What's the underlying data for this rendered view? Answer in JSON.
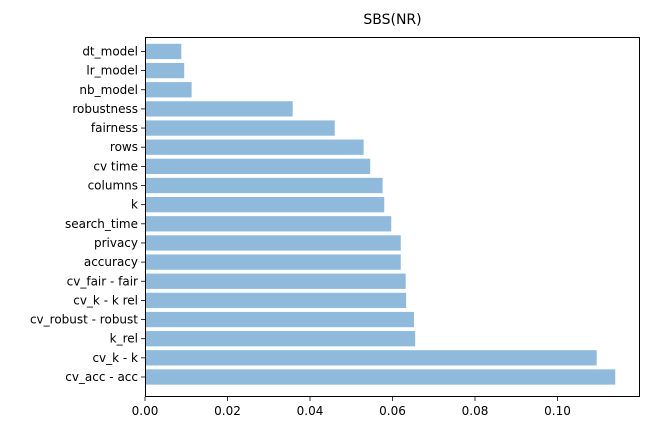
{
  "chart_data": {
    "type": "bar",
    "orientation": "horizontal",
    "title": "SBS(NR)",
    "xlabel": "",
    "ylabel": "",
    "xlim": [
      0,
      0.12
    ],
    "xticks": [
      0.0,
      0.02,
      0.04,
      0.06,
      0.08,
      0.1
    ],
    "xtick_labels": [
      "0.00",
      "0.02",
      "0.04",
      "0.06",
      "0.08",
      "0.10"
    ],
    "categories": [
      "cv_acc - acc",
      "cv_k - k",
      "k_rel",
      "cv_robust - robust",
      "cv_k - k rel",
      "cv_fair - fair",
      "accuracy",
      "privacy",
      "search_time",
      "k",
      "columns",
      "cv time",
      "rows",
      "fairness",
      "robustness",
      "nb_model",
      "lr_model",
      "dt_model"
    ],
    "values": [
      0.114,
      0.1095,
      0.0655,
      0.0652,
      0.0633,
      0.0632,
      0.062,
      0.062,
      0.0597,
      0.058,
      0.0576,
      0.0546,
      0.053,
      0.046,
      0.0358,
      0.0113,
      0.0095,
      0.0088
    ],
    "bar_color": "#8fbadb",
    "grid": false,
    "legend": "none"
  }
}
